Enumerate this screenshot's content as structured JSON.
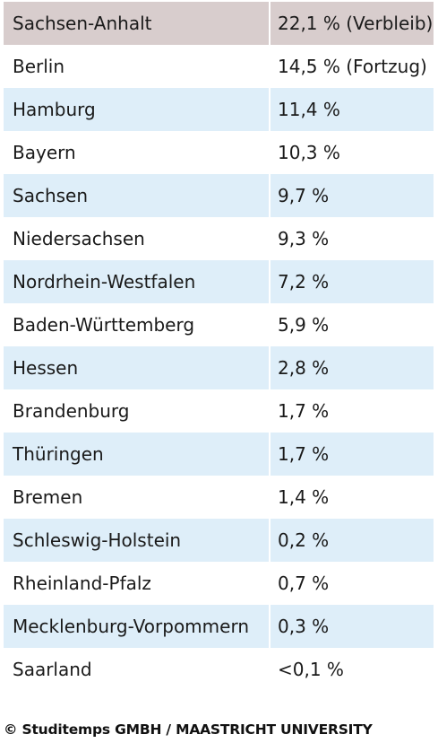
{
  "table": {
    "rows": [
      {
        "state": "Sachsen-Anhalt",
        "share": "22,1 % (Verbleib)",
        "style": "head"
      },
      {
        "state": "Berlin",
        "share": "14,5 % (Fortzug)",
        "style": "plain"
      },
      {
        "state": "Hamburg",
        "share": "11,4 %",
        "style": "shade"
      },
      {
        "state": "Bayern",
        "share": "10,3 %",
        "style": "plain"
      },
      {
        "state": "Sachsen",
        "share": "9,7 %",
        "style": "shade"
      },
      {
        "state": "Niedersachsen",
        "share": "9,3 %",
        "style": "plain"
      },
      {
        "state": "Nordrhein-Westfalen",
        "share": "7,2 %",
        "style": "shade"
      },
      {
        "state": "Baden-Württemberg",
        "share": "5,9 %",
        "style": "plain"
      },
      {
        "state": "Hessen",
        "share": "2,8 %",
        "style": "shade"
      },
      {
        "state": "Brandenburg",
        "share": "1,7 %",
        "style": "plain"
      },
      {
        "state": "Thüringen",
        "share": "1,7 %",
        "style": "shade"
      },
      {
        "state": "Bremen",
        "share": "1,4 %",
        "style": "plain"
      },
      {
        "state": "Schleswig-Holstein",
        "share": "0,2 %",
        "style": "shade"
      },
      {
        "state": "Rheinland-Pfalz",
        "share": "0,7 %",
        "style": "plain"
      },
      {
        "state": "Mecklenburg-Vorpommern",
        "share": "0,3 %",
        "style": "shade"
      },
      {
        "state": "Saarland",
        "share": "<0,1 %",
        "style": "plain"
      }
    ]
  },
  "footer": {
    "credit": "© Studitemps GMBH / MAASTRICHT UNIVERSITY"
  },
  "colors": {
    "header_row": "#d8cdcd",
    "shaded_row": "#deeef9",
    "plain_row": "#ffffff"
  }
}
